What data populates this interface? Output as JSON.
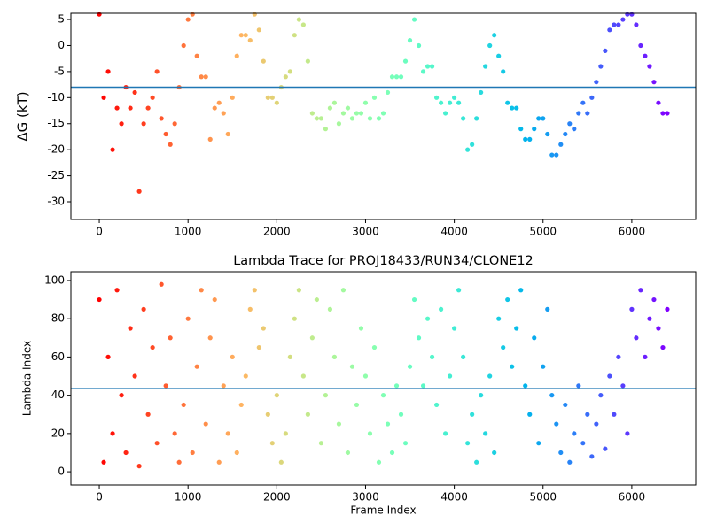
{
  "chart_data": [
    {
      "type": "scatter",
      "ylabel": "ΔG (kT)",
      "colormap": "rainbow_r",
      "hline": -8,
      "hline_color": "#1f77b4",
      "xlim": [
        -320,
        6720
      ],
      "ylim": [
        -33.4,
        6.2
      ],
      "xticks": [
        0,
        1000,
        2000,
        3000,
        4000,
        5000,
        6000
      ],
      "yticks": [
        -30,
        -25,
        -20,
        -15,
        -10,
        -5,
        0,
        5
      ],
      "x": [
        0,
        50,
        100,
        150,
        200,
        250,
        300,
        350,
        400,
        450,
        500,
        550,
        600,
        650,
        700,
        750,
        800,
        850,
        900,
        950,
        1000,
        1050,
        1100,
        1150,
        1200,
        1250,
        1300,
        1350,
        1400,
        1450,
        1500,
        1550,
        1600,
        1650,
        1700,
        1750,
        1800,
        1850,
        1900,
        1950,
        2000,
        2050,
        2100,
        2150,
        2200,
        2250,
        2300,
        2350,
        2400,
        2450,
        2500,
        2550,
        2600,
        2650,
        2700,
        2750,
        2800,
        2850,
        2900,
        2950,
        3000,
        3050,
        3100,
        3150,
        3200,
        3250,
        3300,
        3350,
        3400,
        3450,
        3500,
        3550,
        3600,
        3650,
        3700,
        3750,
        3800,
        3850,
        3900,
        3950,
        4000,
        4050,
        4100,
        4150,
        4200,
        4250,
        4300,
        4350,
        4400,
        4450,
        4500,
        4550,
        4600,
        4650,
        4700,
        4750,
        4800,
        4850,
        4900,
        4950,
        5000,
        5050,
        5100,
        5150,
        5200,
        5250,
        5300,
        5350,
        5400,
        5450,
        5500,
        5550,
        5600,
        5650,
        5700,
        5750,
        5800,
        5850,
        5900,
        5950,
        6000,
        6050,
        6100,
        6150,
        6200,
        6250,
        6300,
        6350,
        6400
      ],
      "values": [
        6,
        -10,
        -5,
        -20,
        -12,
        -15,
        -8,
        -12,
        -9,
        -28,
        -15,
        -12,
        -10,
        -5,
        -14,
        -17,
        -19,
        -15,
        -8,
        0,
        5,
        6,
        -2,
        -6,
        -6,
        -18,
        -12,
        -11,
        -13,
        -17,
        -10,
        -2,
        2,
        2,
        1,
        6,
        3,
        -3,
        -10,
        -10,
        -11,
        -8,
        -6,
        -5,
        2,
        5,
        4,
        -3,
        -13,
        -14,
        -14,
        -16,
        -12,
        -11,
        -15,
        -13,
        -12,
        -14,
        -13,
        -13,
        -11,
        -14,
        -10,
        -14,
        -13,
        -9,
        -6,
        -6,
        -6,
        -3,
        1,
        5,
        0,
        -5,
        -4,
        -4,
        -10,
        -11,
        -13,
        -11,
        -10,
        -11,
        -14,
        -20,
        -19,
        -14,
        -9,
        -4,
        0,
        2,
        -2,
        -5,
        -11,
        -12,
        -12,
        -16,
        -18,
        -18,
        -16,
        -14,
        -14,
        -17,
        -21,
        -21,
        -19,
        -17,
        -15,
        -16,
        -13,
        -11,
        -13,
        -10,
        -7,
        -4,
        -1,
        3,
        4,
        4,
        5,
        6,
        6,
        4,
        0,
        -2,
        -4,
        -7,
        -11,
        -13,
        -13
      ]
    },
    {
      "type": "scatter",
      "title": "Lambda Trace for PROJ18433/RUN34/CLONE12",
      "xlabel": "Frame Index",
      "ylabel": "Lambda Index",
      "colormap": "rainbow_r",
      "hline": 43.5,
      "hline_color": "#1f77b4",
      "xlim": [
        -320,
        6720
      ],
      "ylim": [
        -6.9,
        104.6
      ],
      "xticks": [
        0,
        1000,
        2000,
        3000,
        4000,
        5000,
        6000
      ],
      "yticks": [
        0,
        20,
        40,
        60,
        80,
        100
      ],
      "x": [
        0,
        50,
        100,
        150,
        200,
        250,
        300,
        350,
        400,
        450,
        500,
        550,
        600,
        650,
        700,
        750,
        800,
        850,
        900,
        950,
        1000,
        1050,
        1100,
        1150,
        1200,
        1250,
        1300,
        1350,
        1400,
        1450,
        1500,
        1550,
        1600,
        1650,
        1700,
        1750,
        1800,
        1850,
        1900,
        1950,
        2000,
        2050,
        2100,
        2150,
        2200,
        2250,
        2300,
        2350,
        2400,
        2450,
        2500,
        2550,
        2600,
        2650,
        2700,
        2750,
        2800,
        2850,
        2900,
        2950,
        3000,
        3050,
        3100,
        3150,
        3200,
        3250,
        3300,
        3350,
        3400,
        3450,
        3500,
        3550,
        3600,
        3650,
        3700,
        3750,
        3800,
        3850,
        3900,
        3950,
        4000,
        4050,
        4100,
        4150,
        4200,
        4250,
        4300,
        4350,
        4400,
        4450,
        4500,
        4550,
        4600,
        4650,
        4700,
        4750,
        4800,
        4850,
        4900,
        4950,
        5000,
        5050,
        5100,
        5150,
        5200,
        5250,
        5300,
        5350,
        5400,
        5450,
        5500,
        5550,
        5600,
        5650,
        5700,
        5750,
        5800,
        5850,
        5900,
        5950,
        6000,
        6050,
        6100,
        6150,
        6200,
        6250,
        6300,
        6350,
        6400
      ],
      "values": [
        90,
        5,
        60,
        20,
        95,
        40,
        10,
        75,
        50,
        3,
        85,
        30,
        65,
        15,
        98,
        45,
        70,
        20,
        5,
        35,
        80,
        10,
        55,
        95,
        25,
        70,
        90,
        5,
        45,
        20,
        60,
        10,
        35,
        50,
        85,
        95,
        65,
        75,
        30,
        15,
        40,
        5,
        20,
        60,
        80,
        95,
        50,
        30,
        70,
        90,
        15,
        40,
        85,
        60,
        25,
        95,
        10,
        55,
        35,
        75,
        50,
        20,
        65,
        5,
        40,
        25,
        10,
        45,
        30,
        15,
        55,
        90,
        70,
        45,
        80,
        60,
        35,
        85,
        20,
        50,
        75,
        95,
        60,
        15,
        30,
        5,
        40,
        20,
        50,
        10,
        80,
        65,
        90,
        55,
        75,
        95,
        45,
        30,
        70,
        15,
        55,
        85,
        40,
        25,
        10,
        35,
        5,
        20,
        45,
        15,
        30,
        8,
        25,
        40,
        12,
        50,
        30,
        60,
        45,
        20,
        85,
        70,
        95,
        60,
        80,
        90,
        75,
        65,
        85
      ]
    }
  ]
}
